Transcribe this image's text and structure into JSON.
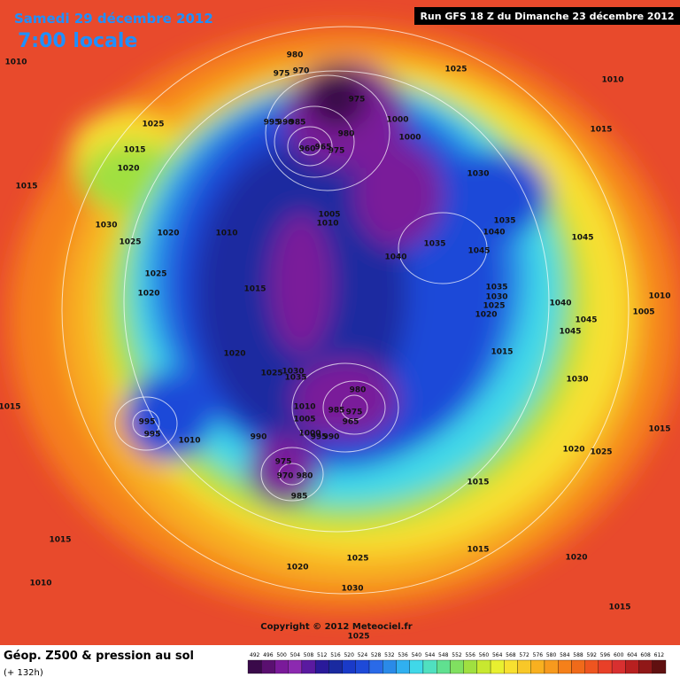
{
  "header": {
    "date": "Samedi 29 décembre 2012",
    "time": "7:00 locale",
    "run": "Run GFS 18 Z du Dimanche 23 décembre 2012"
  },
  "copyright": "Copyright © 2012 Meteociel.fr",
  "legend": {
    "title": "Géop. Z500 & pression au sol",
    "subtitle": "(+ 132h)"
  },
  "isobar_labels": [
    980,
    975,
    970,
    975,
    1000,
    1000,
    995,
    990,
    985,
    980,
    960,
    965,
    975,
    1025,
    1010,
    1010,
    1025,
    1015,
    1015,
    1020,
    1030,
    1015,
    1005,
    1010,
    1035,
    1030,
    1020,
    1010,
    1040,
    1045,
    1025,
    1035,
    1045,
    1040,
    1025,
    1015,
    1035,
    1030,
    1020,
    1025,
    1020,
    1040,
    1010,
    1005,
    1045,
    1045,
    1020,
    1015,
    1030,
    1025,
    1030,
    1035,
    980,
    1010,
    975,
    985,
    1005,
    965,
    995,
    1000,
    995,
    990,
    995,
    990,
    1010,
    1015,
    1015,
    1020,
    1025,
    975,
    970,
    980,
    985,
    1015,
    1015,
    1015,
    1020,
    1025,
    1020,
    1010,
    1030,
    1015,
    1025
  ],
  "scale": {
    "ticks": [
      492,
      496,
      500,
      504,
      508,
      512,
      516,
      520,
      524,
      528,
      532,
      536,
      540,
      544,
      548,
      552,
      556,
      560,
      564,
      568,
      572,
      576,
      580,
      584,
      588,
      592,
      596,
      600,
      604,
      608,
      612
    ],
    "colors": [
      "#3a0a4a",
      "#5a1070",
      "#7a1a9a",
      "#8c2ab0",
      "#5a1aa0",
      "#2a1a9a",
      "#1a2aa0",
      "#1a3ac8",
      "#1e4ad8",
      "#2a6ae8",
      "#2a8ae8",
      "#30b0f0",
      "#40d8e8",
      "#50e0c0",
      "#60e090",
      "#80e060",
      "#a0e040",
      "#c8e830",
      "#e8f030",
      "#f8e030",
      "#f8c828",
      "#f8b020",
      "#f79a1e",
      "#f5801a",
      "#f06a1a",
      "#ee5520",
      "#e84028",
      "#d83030",
      "#b82020",
      "#901818",
      "#601010"
    ]
  }
}
